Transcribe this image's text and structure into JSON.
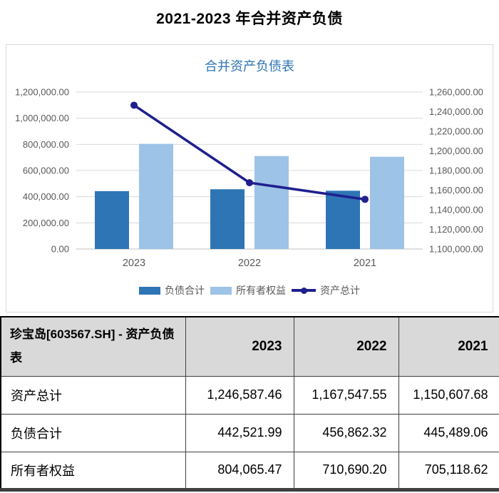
{
  "page_title": "2021-2023 年合并资产负债",
  "chart_data": {
    "type": "combo",
    "title": "合并资产负债表",
    "categories": [
      "2023",
      "2022",
      "2021"
    ],
    "series": [
      {
        "name": "负债合计",
        "chart_type": "bar",
        "axis": "left",
        "color": "#2E75B6",
        "values": [
          442521.99,
          456862.32,
          445489.06
        ]
      },
      {
        "name": "所有者权益",
        "chart_type": "bar",
        "axis": "left",
        "color": "#9DC3E6",
        "values": [
          804065.47,
          710690.2,
          705118.62
        ]
      },
      {
        "name": "资产总计",
        "chart_type": "line",
        "axis": "right",
        "color": "#1F1F8F",
        "values": [
          1246587.46,
          1167547.55,
          1150607.68
        ]
      }
    ],
    "left_axis": {
      "min": 0,
      "max": 1200000,
      "step": 200000,
      "tick_labels": [
        "0.00",
        "200,000.00",
        "400,000.00",
        "600,000.00",
        "800,000.00",
        "1,000,000.00",
        "1,200,000.00"
      ]
    },
    "right_axis": {
      "min": 1100000,
      "max": 1260000,
      "step": 20000,
      "tick_labels": [
        "1,100,000.00",
        "1,120,000.00",
        "1,140,000.00",
        "1,160,000.00",
        "1,180,000.00",
        "1,200,000.00",
        "1,220,000.00",
        "1,240,000.00",
        "1,260,000.00"
      ]
    },
    "legend_position": "bottom",
    "grid": true
  },
  "colors": {
    "chart_title": "#2E75B6",
    "bar_dark": "#2E75B6",
    "bar_light": "#9DC3E6",
    "line": "#1F1F8F",
    "axis_text": "#595959",
    "gridline": "#d9d9d9",
    "axis_line": "#bfbfbf",
    "table_header_bg": "#d9d9d9"
  },
  "table": {
    "header_label": "珍宝岛[603567.SH] - 资产负债表",
    "columns": [
      "2023",
      "2022",
      "2021"
    ],
    "rows": [
      {
        "label": "资产总计",
        "values": [
          "1,246,587.46",
          "1,167,547.55",
          "1,150,607.68"
        ]
      },
      {
        "label": "负债合计",
        "values": [
          "442,521.99",
          "456,862.32",
          "445,489.06"
        ]
      },
      {
        "label": "所有者权益",
        "values": [
          "804,065.47",
          "710,690.20",
          "705,118.62"
        ]
      }
    ]
  }
}
